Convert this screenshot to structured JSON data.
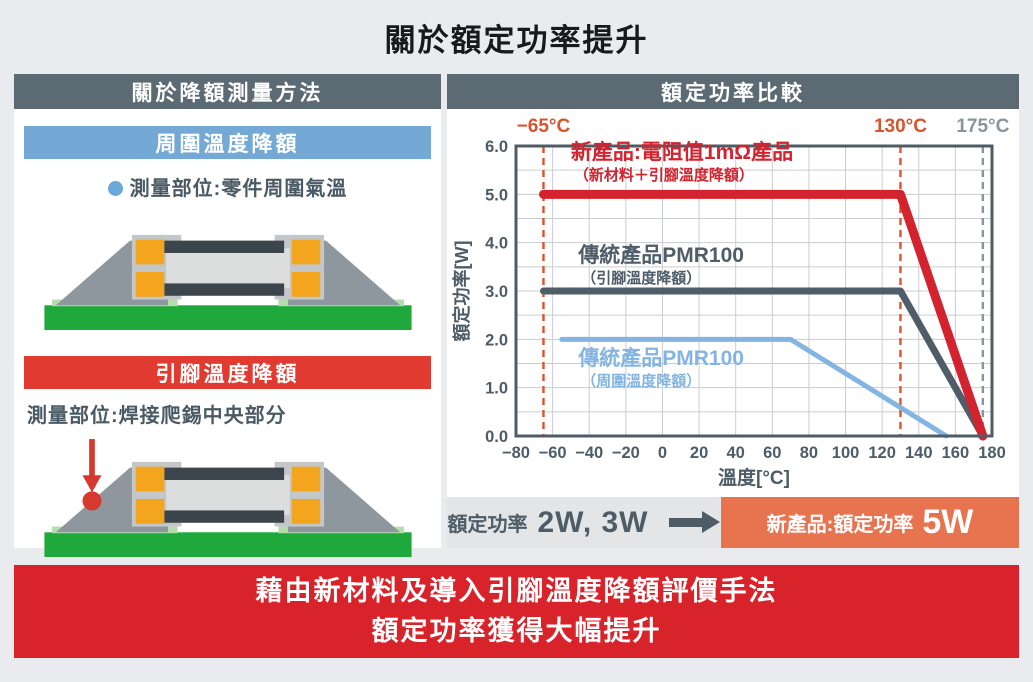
{
  "page": {
    "title": "關於額定功率提升"
  },
  "colors": {
    "header_slate": "#5b6a73",
    "ambient_blue": "#74a9d6",
    "terminal_red": "#e13a30",
    "banner_red": "#d8232b",
    "highlight_salmon": "#e7734f",
    "accent_orange_red": "#d9532e",
    "text_slate": "#4a5a64"
  },
  "left_panel": {
    "header": "關於降額測量方法",
    "ambient": {
      "header": "周圍溫度降額",
      "note": "測量部位:零件周圍氣溫"
    },
    "terminal": {
      "header": "引腳溫度降額",
      "note": "測量部位:焊接爬錫中央部分"
    }
  },
  "right_panel": {
    "header": "額定功率比較",
    "summary": {
      "before_label": "額定功率",
      "before_value": "2W, 3W",
      "after_label": "新產品:額定功率",
      "after_value": "5W"
    }
  },
  "banner": {
    "line1": "藉由新材料及導入引腳溫度降額評價手法",
    "line2": "額定功率獲得大幅提升"
  },
  "chart_data": {
    "type": "line",
    "title": "額定功率比較",
    "xlabel": "溫度[°C]",
    "ylabel": "額定功率[W]",
    "xlim": [
      -80,
      180
    ],
    "ylim": [
      0,
      6
    ],
    "x_ticks": [
      -80,
      -60,
      -40,
      -20,
      0,
      20,
      40,
      60,
      80,
      100,
      120,
      140,
      160,
      180
    ],
    "y_ticks": [
      6,
      5,
      4,
      3,
      2,
      1,
      0
    ],
    "x_gridstep": 20,
    "y_gridstep": 0.5,
    "grid": true,
    "frame_color": "#4d5c66",
    "grid_color": "#c9cdd1",
    "tick_color": "#4d5c66",
    "vlines": [
      {
        "x": -65,
        "label": "−65°C",
        "color": "#d9532e",
        "style": "dashed"
      },
      {
        "x": 130,
        "label": "130°C",
        "color": "#d9532e",
        "style": "dashed"
      },
      {
        "x": 175,
        "label": "175°C",
        "color": "#8b949b",
        "style": "dashed"
      }
    ],
    "series": [
      {
        "name": "新產品:電阻值1mΩ產品",
        "subtitle": "（新材料＋引腳溫度降額）",
        "color": "#d2232e",
        "width": 9,
        "points": [
          [
            -65,
            5
          ],
          [
            130,
            5
          ],
          [
            175,
            0
          ]
        ],
        "label_at": [
          -50,
          5.73
        ]
      },
      {
        "name": "傳統產品PMR100",
        "subtitle": "（引腳溫度降額）",
        "color": "#4e5d67",
        "width": 7,
        "points": [
          [
            -65,
            3
          ],
          [
            130,
            3
          ],
          [
            175,
            0
          ]
        ],
        "label_at": [
          -46,
          3.6
        ]
      },
      {
        "name": "傳統產品PMR100",
        "subtitle": "（周圍溫度降額）",
        "color": "#84b5e2",
        "width": 5,
        "points": [
          [
            -55,
            2
          ],
          [
            70,
            2
          ],
          [
            155,
            0
          ]
        ],
        "label_at": [
          -46,
          1.47
        ]
      }
    ]
  }
}
